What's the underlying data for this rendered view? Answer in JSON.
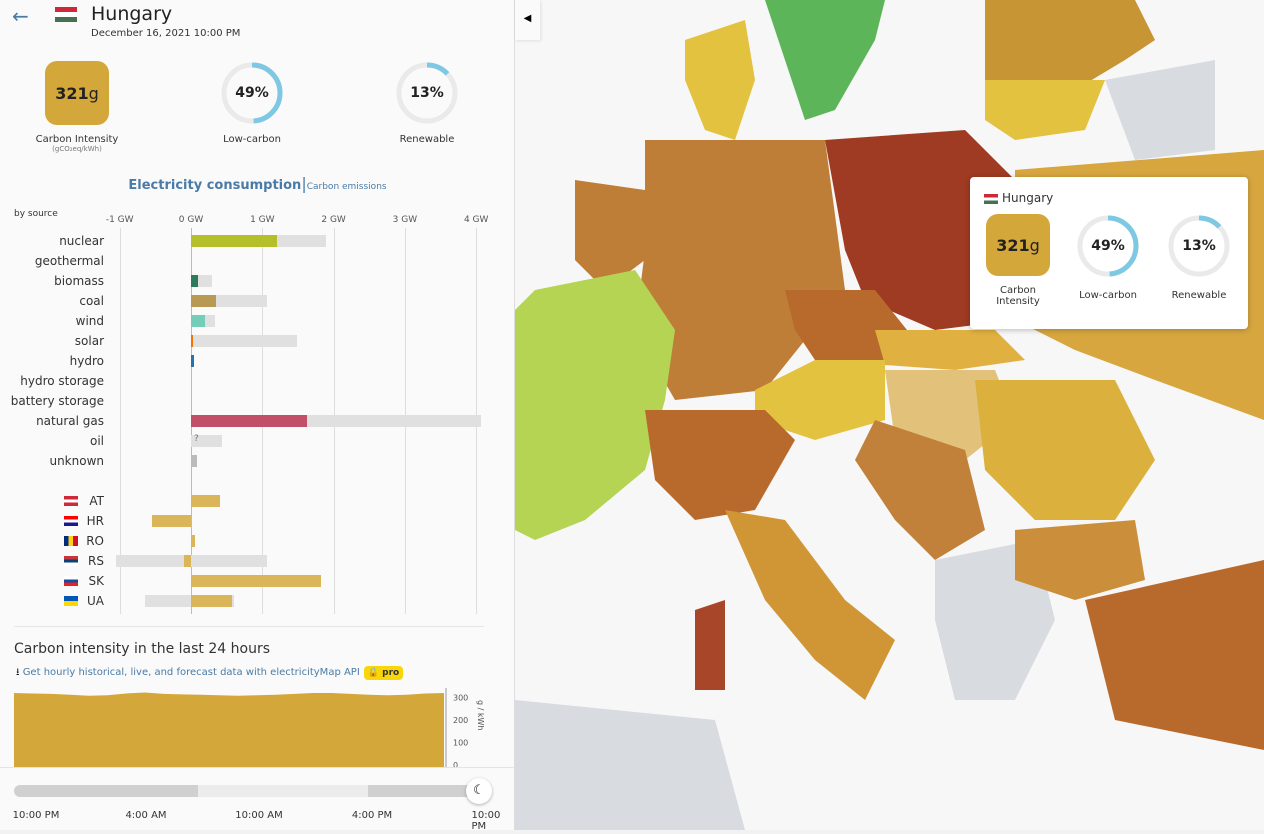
{
  "header": {
    "back_icon": "arrow-left-icon",
    "country": "Hungary",
    "datetime": "December 16, 2021 10:00 PM"
  },
  "metrics": {
    "carbon_value": "321",
    "carbon_unit": "g",
    "carbon_label": "Carbon Intensity",
    "carbon_sub": "(gCO₂eq/kWh)",
    "low_carbon": "49%",
    "low_carbon_fraction": 0.49,
    "low_carbon_label": "Low-carbon",
    "renewable": "13%",
    "renewable_fraction": 0.13,
    "renewable_label": "Renewable",
    "ring_color": "#7ec8e3",
    "carbon_color": "#d4a73a"
  },
  "tabs": {
    "active": "Electricity consumption",
    "separator": "|",
    "other": "Carbon emissions"
  },
  "chart_data": {
    "type": "bar",
    "title": "",
    "by_label": "by source",
    "xticks": [
      "-1 GW",
      "0 GW",
      "1 GW",
      "2 GW",
      "3 GW",
      "4 GW"
    ],
    "xlim": [
      -1,
      4
    ],
    "unit": "GW",
    "sources": [
      {
        "name": "nuclear",
        "value": 1.2,
        "capacity": 1.9,
        "color": "#b5bf2a"
      },
      {
        "name": "geothermal",
        "value": 0,
        "capacity": 0,
        "color": "#aaa"
      },
      {
        "name": "biomass",
        "value": 0.1,
        "capacity": 0.3,
        "color": "#2f7a5a"
      },
      {
        "name": "coal",
        "value": 0.35,
        "capacity": 1.07,
        "color": "#b89a55"
      },
      {
        "name": "wind",
        "value": 0.2,
        "capacity": 0.34,
        "color": "#74cdb9"
      },
      {
        "name": "solar",
        "value": 0.01,
        "capacity": 1.48,
        "color": "#f27406"
      },
      {
        "name": "hydro",
        "value": 0.04,
        "capacity": 0.04,
        "color": "#2773b0"
      },
      {
        "name": "hydro storage",
        "value": 0,
        "capacity": 0,
        "color": "#aaa"
      },
      {
        "name": "battery storage",
        "value": 0,
        "capacity": 0,
        "color": "#aaa"
      },
      {
        "name": "natural gas",
        "value": 1.63,
        "capacity": 4.07,
        "color": "#c14f68"
      },
      {
        "name": "oil",
        "value": 0,
        "capacity": 0.44,
        "color": "#aaa",
        "note": "?"
      },
      {
        "name": "unknown",
        "value": 0.08,
        "capacity": 0,
        "color": "#aaa"
      }
    ],
    "exchanges": [
      {
        "name": "AT",
        "value": 0.4,
        "cap_min": 0,
        "cap_max": 0,
        "flag": [
          "#ce2939",
          "#fff",
          "#ce2939"
        ]
      },
      {
        "name": "HR",
        "value": -0.54,
        "cap_min": 0,
        "cap_max": 0,
        "flag": [
          "#ff0000",
          "#fff",
          "#171796"
        ]
      },
      {
        "name": "RO",
        "value": 0.05,
        "cap_min": 0,
        "cap_max": 0,
        "flag": [
          "#002b7f",
          "#fcd116",
          "#ce1126"
        ],
        "vertical": true
      },
      {
        "name": "RS",
        "value": -0.1,
        "cap_min": -1.05,
        "cap_max": 1.07,
        "flag": [
          "#c6363c",
          "#0c4076",
          "#fff"
        ]
      },
      {
        "name": "SK",
        "value": 1.82,
        "cap_min": 0,
        "cap_max": 0,
        "flag": [
          "#fff",
          "#0b4ea2",
          "#ee1c25"
        ]
      },
      {
        "name": "UA",
        "value": 0.58,
        "cap_min": -0.65,
        "cap_max": 0.6,
        "flag": [
          "#0057b7",
          "#ffd700"
        ]
      }
    ],
    "exchange_color": "#dbb55a"
  },
  "history": {
    "title": "Carbon intensity in the last 24 hours",
    "download_icon": "download-icon",
    "api_text": "Get hourly historical, live, and forecast data with electricityMap API",
    "pro_label": "pro",
    "lock_icon": "lock-icon",
    "yticks": [
      "300",
      "200",
      "100",
      "0"
    ],
    "yunit": "g / kWh",
    "values": [
      320,
      318,
      316,
      312,
      308,
      310,
      318,
      322,
      316,
      314,
      312,
      310,
      308,
      310,
      312,
      316,
      320,
      320,
      316,
      312,
      310,
      312,
      318,
      320
    ],
    "color": "#d4a73a"
  },
  "timeline": {
    "ticks": [
      "10:00 PM",
      "4:00 AM",
      "10:00 AM",
      "4:00 PM",
      "10:00 PM"
    ],
    "handle_icon": "moon-icon"
  },
  "tooltip": {
    "country": "Hungary",
    "carbon_value": "321",
    "carbon_unit": "g",
    "carbon_label": "Carbon Intensity",
    "low_carbon": "49%",
    "low_carbon_label": "Low-carbon",
    "renewable": "13%",
    "renewable_label": "Renewable"
  },
  "map": {
    "collapse_icon": "caret-left-icon"
  }
}
